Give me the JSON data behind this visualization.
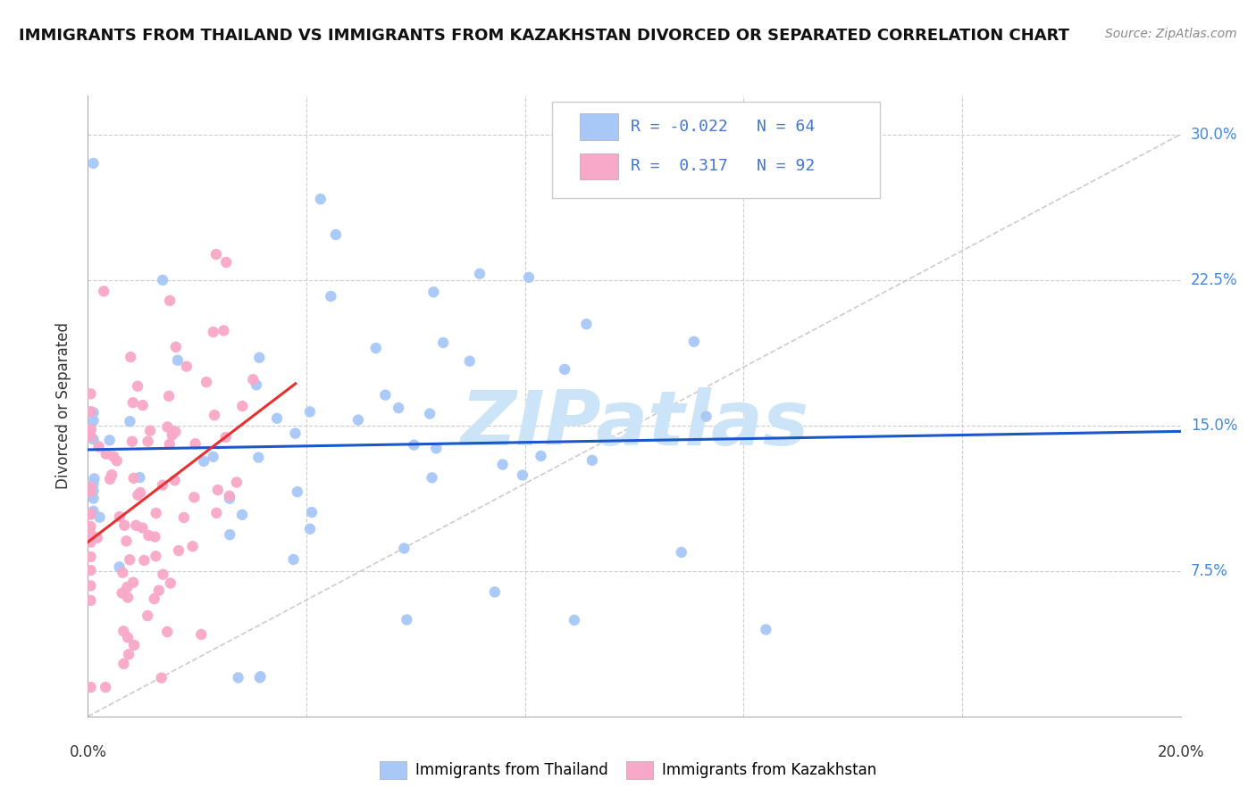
{
  "title": "IMMIGRANTS FROM THAILAND VS IMMIGRANTS FROM KAZAKHSTAN DIVORCED OR SEPARATED CORRELATION CHART",
  "source": "Source: ZipAtlas.com",
  "ylabel": "Divorced or Separated",
  "ytick_labels": [
    "7.5%",
    "15.0%",
    "22.5%",
    "30.0%"
  ],
  "ytick_values": [
    0.075,
    0.15,
    0.225,
    0.3
  ],
  "xlim": [
    0.0,
    0.2
  ],
  "ylim": [
    0.0,
    0.32
  ],
  "legend_r_thailand": "R = -0.022",
  "legend_n_thailand": "N = 64",
  "legend_r_kazakhstan": "R =  0.317",
  "legend_n_kazakhstan": "N = 92",
  "thailand_color": "#a8c8f8",
  "kazakhstan_color": "#f8a8c8",
  "trendline_thailand_color": "#1a56cc",
  "trendline_kazakhstan_color": "#e83030",
  "grid_color": "#cccccc",
  "diagonal_color": "#cccccc",
  "watermark_color": "#cce4f7",
  "watermark": "ZIPatlas",
  "title_fontsize": 13,
  "source_fontsize": 10,
  "label_fontsize": 12,
  "tick_fontsize": 12,
  "legend_fontsize": 13,
  "marker_size": 80
}
